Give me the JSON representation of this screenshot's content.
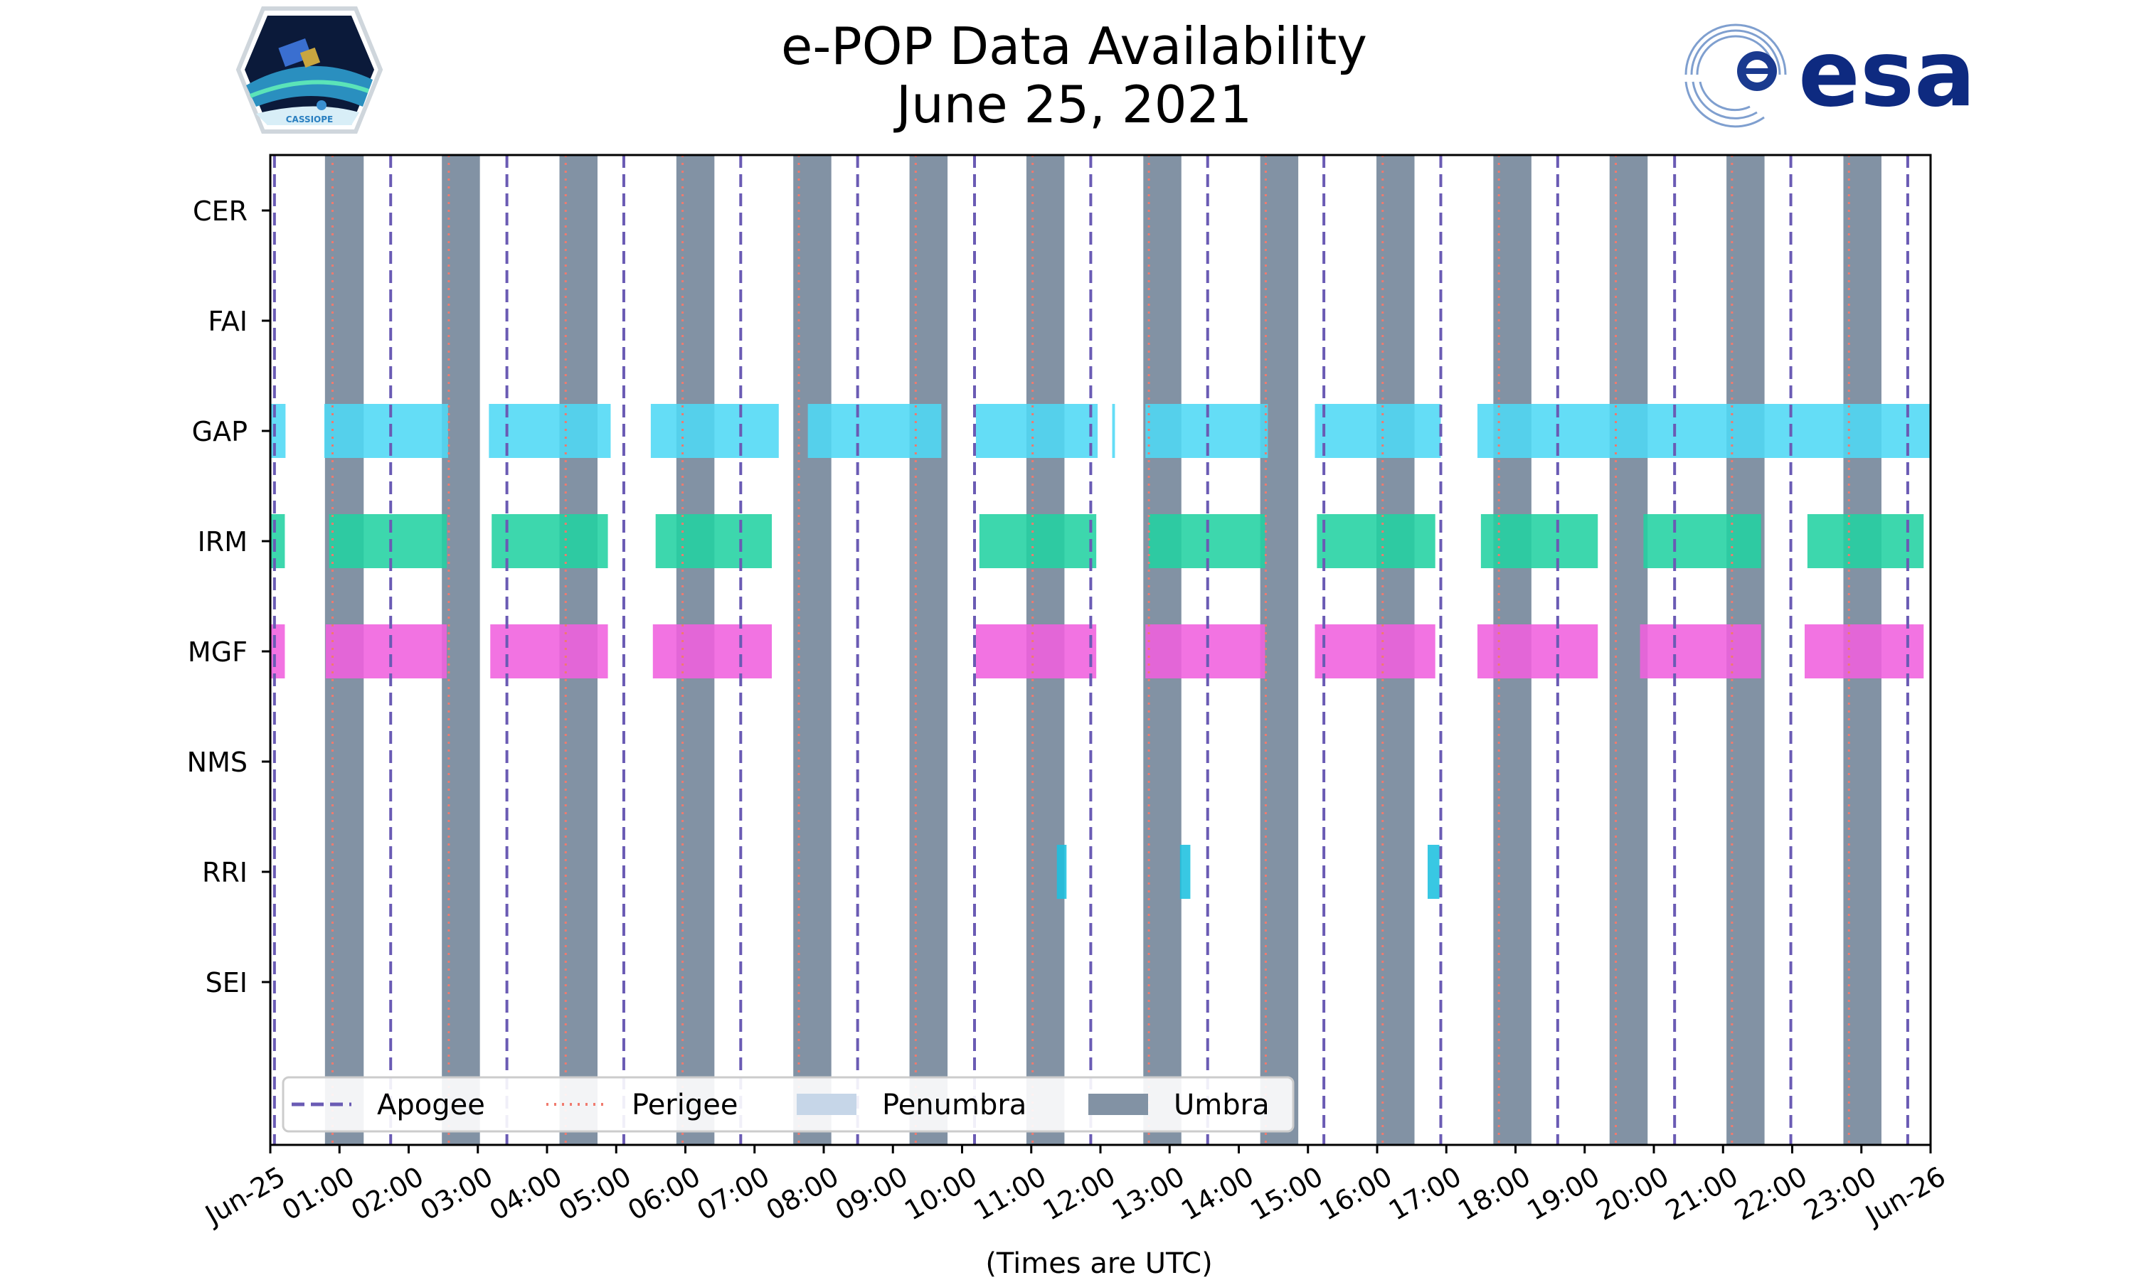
{
  "chart_data": {
    "type": "timeline",
    "title": "e-POP Data Availability",
    "subtitle": "June 25, 2021",
    "xlabel": "(Times are UTC)",
    "x_range_hours": [
      0,
      24
    ],
    "x_tick_labels": [
      "Jun-25",
      "01:00",
      "02:00",
      "03:00",
      "04:00",
      "05:00",
      "06:00",
      "07:00",
      "08:00",
      "09:00",
      "10:00",
      "11:00",
      "12:00",
      "13:00",
      "14:00",
      "15:00",
      "16:00",
      "17:00",
      "18:00",
      "19:00",
      "20:00",
      "21:00",
      "22:00",
      "23:00",
      "Jun-26"
    ],
    "instruments": [
      "CER",
      "FAI",
      "GAP",
      "IRM",
      "MGF",
      "NMS",
      "RRI",
      "SEI"
    ],
    "instrument_colors": {
      "GAP": "#4fd8f5",
      "IRM": "#22d1a2",
      "MGF": "#f060de",
      "RRI": "#1cc0df"
    },
    "data_availability": {
      "CER": [],
      "FAI": [],
      "GAP": [
        [
          0.0,
          0.22
        ],
        [
          0.78,
          2.57
        ],
        [
          3.16,
          4.92
        ],
        [
          5.5,
          7.35
        ],
        [
          7.77,
          9.7
        ],
        [
          10.2,
          11.96
        ],
        [
          12.17,
          12.21
        ],
        [
          12.65,
          14.42
        ],
        [
          15.1,
          16.92
        ],
        [
          17.45,
          24.0
        ]
      ],
      "IRM": [
        [
          0.0,
          0.21
        ],
        [
          0.85,
          2.55
        ],
        [
          3.2,
          4.88
        ],
        [
          5.57,
          7.25
        ],
        [
          10.25,
          11.94
        ],
        [
          12.7,
          14.38
        ],
        [
          15.13,
          16.84
        ],
        [
          17.5,
          19.19
        ],
        [
          19.85,
          21.55
        ],
        [
          22.22,
          23.9
        ]
      ],
      "MGF": [
        [
          0.0,
          0.21
        ],
        [
          0.8,
          2.55
        ],
        [
          3.18,
          4.88
        ],
        [
          5.53,
          7.25
        ],
        [
          10.2,
          11.94
        ],
        [
          12.65,
          14.38
        ],
        [
          15.1,
          16.84
        ],
        [
          17.45,
          19.19
        ],
        [
          19.8,
          21.55
        ],
        [
          22.18,
          23.9
        ]
      ],
      "NMS": [],
      "RRI": [
        [
          11.37,
          11.51
        ],
        [
          13.15,
          13.3
        ],
        [
          16.73,
          16.9
        ]
      ],
      "SEI": []
    },
    "umbra_intervals": [
      [
        0.79,
        1.35
      ],
      [
        2.48,
        3.03
      ],
      [
        4.18,
        4.73
      ],
      [
        5.87,
        6.42
      ],
      [
        7.56,
        8.11
      ],
      [
        9.24,
        9.79
      ],
      [
        10.93,
        11.48
      ],
      [
        12.62,
        13.17
      ],
      [
        14.31,
        14.86
      ],
      [
        15.99,
        16.54
      ],
      [
        17.68,
        18.23
      ],
      [
        19.36,
        19.91
      ],
      [
        21.05,
        21.6
      ],
      [
        22.74,
        23.29
      ]
    ],
    "penumbra_intervals": [],
    "apogee_times": [
      0.06,
      1.74,
      3.42,
      5.11,
      6.8,
      8.49,
      10.18,
      11.86,
      13.55,
      15.23,
      16.92,
      18.61,
      20.3,
      21.98,
      23.67
    ],
    "perigee_times": [
      0.9,
      2.58,
      4.27,
      5.96,
      7.64,
      9.33,
      11.02,
      12.7,
      14.39,
      16.08,
      17.76,
      19.45,
      21.13,
      22.82
    ],
    "legend": {
      "position": "lower-left",
      "entries": [
        {
          "label": "Apogee",
          "style": "dashed",
          "color": "#6a5bb4"
        },
        {
          "label": "Perigee",
          "style": "dotted",
          "color": "#f07a6e"
        },
        {
          "label": "Penumbra",
          "style": "patch",
          "color": "#c6d6e8"
        },
        {
          "label": "Umbra",
          "style": "patch",
          "color": "#8292a4"
        }
      ]
    }
  },
  "logos": {
    "left_badge_text": "CASSIOPE",
    "right_logo_text": "esa"
  }
}
